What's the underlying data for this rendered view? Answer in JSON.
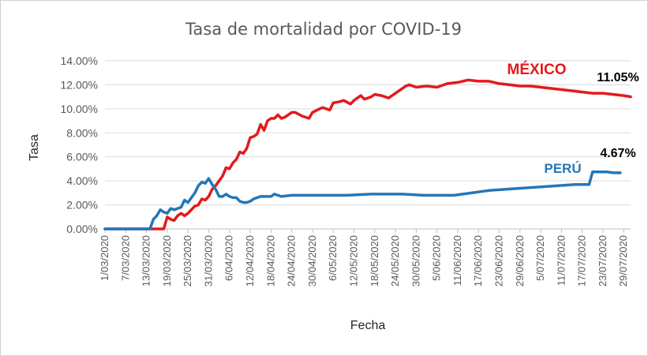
{
  "chart_data": {
    "type": "line",
    "title": "Tasa de mortalidad por COVID-19",
    "xlabel": "Fecha",
    "ylabel": "Tasa",
    "ylim": [
      0,
      0.14
    ],
    "yticks": [
      "0.00%",
      "2.00%",
      "4.00%",
      "6.00%",
      "8.00%",
      "10.00%",
      "12.00%",
      "14.00%"
    ],
    "x_start": "1/03/2020",
    "x_end": "31/07/2020",
    "x_tick_labels": [
      "1/03/2020",
      "7/03/2020",
      "13/03/2020",
      "19/03/2020",
      "25/03/2020",
      "31/03/2020",
      "6/04/2020",
      "12/04/2020",
      "18/04/2020",
      "24/04/2020",
      "30/04/2020",
      "6/05/2020",
      "12/05/2020",
      "18/05/2020",
      "24/05/2020",
      "30/05/2020",
      "5/06/2020",
      "11/06/2020",
      "17/06/2020",
      "23/06/2020",
      "29/06/2020",
      "5/07/2020",
      "11/07/2020",
      "17/07/2020",
      "23/07/2020",
      "29/07/2020"
    ],
    "grid": "horizontal",
    "series": [
      {
        "name": "MÉXICO",
        "color": "#e31a1c",
        "end_label": "11.05%",
        "points": [
          [
            "1/03/2020",
            0.0
          ],
          [
            "18/03/2020",
            0.0
          ],
          [
            "19/03/2020",
            0.01
          ],
          [
            "20/03/2020",
            0.008
          ],
          [
            "21/03/2020",
            0.007
          ],
          [
            "22/03/2020",
            0.011
          ],
          [
            "23/03/2020",
            0.013
          ],
          [
            "24/03/2020",
            0.011
          ],
          [
            "25/03/2020",
            0.013
          ],
          [
            "26/03/2020",
            0.016
          ],
          [
            "27/03/2020",
            0.019
          ],
          [
            "28/03/2020",
            0.02
          ],
          [
            "29/03/2020",
            0.025
          ],
          [
            "30/03/2020",
            0.024
          ],
          [
            "31/03/2020",
            0.027
          ],
          [
            "1/04/2020",
            0.033
          ],
          [
            "2/04/2020",
            0.036
          ],
          [
            "3/04/2020",
            0.04
          ],
          [
            "4/04/2020",
            0.044
          ],
          [
            "5/04/2020",
            0.051
          ],
          [
            "6/04/2020",
            0.05
          ],
          [
            "7/04/2020",
            0.055
          ],
          [
            "8/04/2020",
            0.058
          ],
          [
            "9/04/2020",
            0.064
          ],
          [
            "10/04/2020",
            0.063
          ],
          [
            "11/04/2020",
            0.067
          ],
          [
            "12/04/2020",
            0.076
          ],
          [
            "13/04/2020",
            0.077
          ],
          [
            "14/04/2020",
            0.079
          ],
          [
            "15/04/2020",
            0.087
          ],
          [
            "16/04/2020",
            0.082
          ],
          [
            "17/04/2020",
            0.09
          ],
          [
            "18/04/2020",
            0.092
          ],
          [
            "19/04/2020",
            0.092
          ],
          [
            "20/04/2020",
            0.095
          ],
          [
            "21/04/2020",
            0.092
          ],
          [
            "22/04/2020",
            0.093
          ],
          [
            "23/04/2020",
            0.095
          ],
          [
            "24/04/2020",
            0.097
          ],
          [
            "25/04/2020",
            0.097
          ],
          [
            "27/04/2020",
            0.094
          ],
          [
            "29/04/2020",
            0.092
          ],
          [
            "30/04/2020",
            0.097
          ],
          [
            "2/05/2020",
            0.1
          ],
          [
            "3/05/2020",
            0.101
          ],
          [
            "5/05/2020",
            0.099
          ],
          [
            "6/05/2020",
            0.105
          ],
          [
            "8/05/2020",
            0.106
          ],
          [
            "9/05/2020",
            0.107
          ],
          [
            "11/05/2020",
            0.104
          ],
          [
            "12/05/2020",
            0.107
          ],
          [
            "14/05/2020",
            0.111
          ],
          [
            "15/05/2020",
            0.108
          ],
          [
            "17/05/2020",
            0.11
          ],
          [
            "18/05/2020",
            0.112
          ],
          [
            "20/05/2020",
            0.111
          ],
          [
            "22/05/2020",
            0.109
          ],
          [
            "24/05/2020",
            0.113
          ],
          [
            "27/05/2020",
            0.119
          ],
          [
            "28/05/2020",
            0.12
          ],
          [
            "30/05/2020",
            0.118
          ],
          [
            "2/06/2020",
            0.119
          ],
          [
            "5/06/2020",
            0.118
          ],
          [
            "8/06/2020",
            0.121
          ],
          [
            "11/06/2020",
            0.122
          ],
          [
            "14/06/2020",
            0.124
          ],
          [
            "17/06/2020",
            0.123
          ],
          [
            "20/06/2020",
            0.123
          ],
          [
            "23/06/2020",
            0.121
          ],
          [
            "26/06/2020",
            0.12
          ],
          [
            "29/06/2020",
            0.119
          ],
          [
            "2/07/2020",
            0.119
          ],
          [
            "5/07/2020",
            0.118
          ],
          [
            "8/07/2020",
            0.117
          ],
          [
            "11/07/2020",
            0.116
          ],
          [
            "14/07/2020",
            0.115
          ],
          [
            "17/07/2020",
            0.114
          ],
          [
            "20/07/2020",
            0.113
          ],
          [
            "23/07/2020",
            0.113
          ],
          [
            "26/07/2020",
            0.112
          ],
          [
            "29/07/2020",
            0.111
          ],
          [
            "31/07/2020",
            0.11
          ]
        ]
      },
      {
        "name": "PERÚ",
        "color": "#2576b8",
        "end_label": "4.67%",
        "points": [
          [
            "1/03/2020",
            0.0
          ],
          [
            "14/03/2020",
            0.0
          ],
          [
            "15/03/2020",
            0.008
          ],
          [
            "16/03/2020",
            0.011
          ],
          [
            "17/03/2020",
            0.016
          ],
          [
            "18/03/2020",
            0.014
          ],
          [
            "19/03/2020",
            0.013
          ],
          [
            "20/03/2020",
            0.017
          ],
          [
            "21/03/2020",
            0.016
          ],
          [
            "22/03/2020",
            0.017
          ],
          [
            "23/03/2020",
            0.018
          ],
          [
            "24/03/2020",
            0.024
          ],
          [
            "25/03/2020",
            0.022
          ],
          [
            "26/03/2020",
            0.026
          ],
          [
            "27/03/2020",
            0.03
          ],
          [
            "28/03/2020",
            0.036
          ],
          [
            "29/03/2020",
            0.039
          ],
          [
            "30/03/2020",
            0.038
          ],
          [
            "31/03/2020",
            0.042
          ],
          [
            "1/04/2020",
            0.037
          ],
          [
            "2/04/2020",
            0.033
          ],
          [
            "3/04/2020",
            0.027
          ],
          [
            "4/04/2020",
            0.027
          ],
          [
            "5/04/2020",
            0.029
          ],
          [
            "6/04/2020",
            0.027
          ],
          [
            "7/04/2020",
            0.026
          ],
          [
            "8/04/2020",
            0.026
          ],
          [
            "9/04/2020",
            0.023
          ],
          [
            "10/04/2020",
            0.022
          ],
          [
            "11/04/2020",
            0.022
          ],
          [
            "12/04/2020",
            0.023
          ],
          [
            "13/04/2020",
            0.025
          ],
          [
            "14/04/2020",
            0.026
          ],
          [
            "15/04/2020",
            0.027
          ],
          [
            "16/04/2020",
            0.027
          ],
          [
            "17/04/2020",
            0.027
          ],
          [
            "18/04/2020",
            0.027
          ],
          [
            "19/04/2020",
            0.029
          ],
          [
            "20/04/2020",
            0.028
          ],
          [
            "21/04/2020",
            0.027
          ],
          [
            "24/04/2020",
            0.028
          ],
          [
            "28/04/2020",
            0.028
          ],
          [
            "3/05/2020",
            0.028
          ],
          [
            "10/05/2020",
            0.028
          ],
          [
            "17/05/2020",
            0.029
          ],
          [
            "26/05/2020",
            0.029
          ],
          [
            "1/06/2020",
            0.028
          ],
          [
            "5/06/2020",
            0.028
          ],
          [
            "10/06/2020",
            0.028
          ],
          [
            "15/06/2020",
            0.03
          ],
          [
            "20/06/2020",
            0.032
          ],
          [
            "25/06/2020",
            0.033
          ],
          [
            "30/06/2020",
            0.034
          ],
          [
            "5/07/2020",
            0.035
          ],
          [
            "10/07/2020",
            0.036
          ],
          [
            "15/07/2020",
            0.037
          ],
          [
            "19/07/2020",
            0.037
          ],
          [
            "20/07/2020",
            0.0475
          ],
          [
            "24/07/2020",
            0.0475
          ],
          [
            "26/07/2020",
            0.0467
          ],
          [
            "28/07/2020",
            0.0467
          ]
        ]
      }
    ]
  }
}
